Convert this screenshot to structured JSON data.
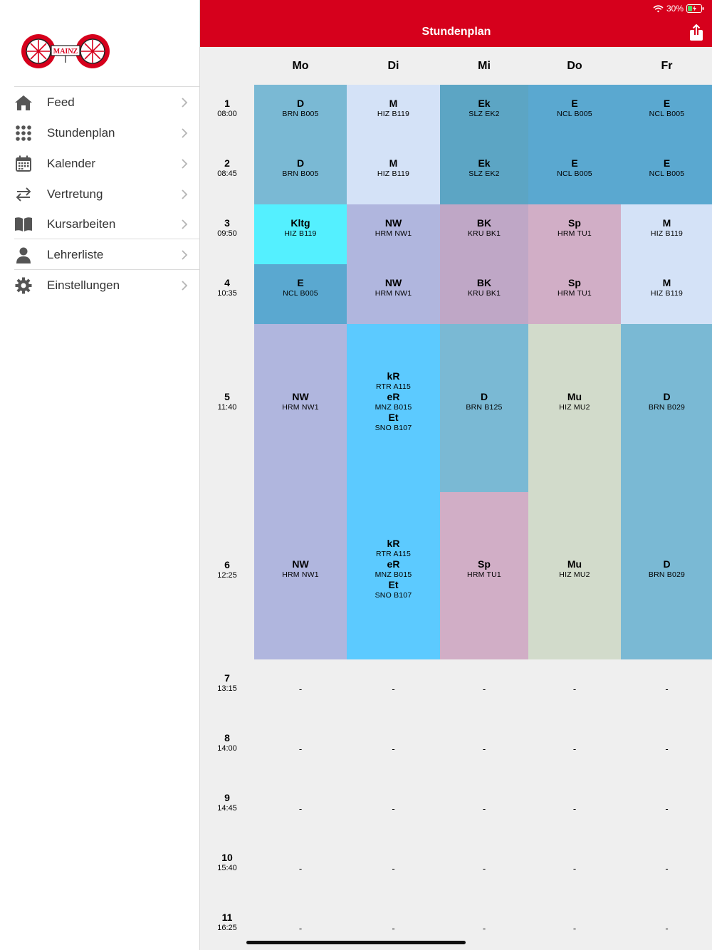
{
  "status": {
    "battery": "30%"
  },
  "header": {
    "title": "Stundenplan"
  },
  "colors": {
    "brand": "#d6001c"
  },
  "logo": {
    "text": "MAINZ"
  },
  "sidebar": {
    "items": [
      {
        "label": "Feed",
        "icon": "home-icon"
      },
      {
        "label": "Stundenplan",
        "icon": "grid-icon"
      },
      {
        "label": "Kalender",
        "icon": "calendar-icon"
      },
      {
        "label": "Vertretung",
        "icon": "swap-icon"
      },
      {
        "label": "Kursarbeiten",
        "icon": "book-icon"
      },
      {
        "label": "Lehrerliste",
        "icon": "person-icon"
      },
      {
        "label": "Einstellungen",
        "icon": "gear-icon"
      }
    ]
  },
  "days": [
    "Mo",
    "Di",
    "Mi",
    "Do",
    "Fr"
  ],
  "periods": [
    {
      "num": "1",
      "time": "08:00"
    },
    {
      "num": "2",
      "time": "08:45"
    },
    {
      "num": "3",
      "time": "09:50"
    },
    {
      "num": "4",
      "time": "10:35"
    },
    {
      "num": "5",
      "time": "11:40"
    },
    {
      "num": "6",
      "time": "12:25"
    },
    {
      "num": "7",
      "time": "13:15"
    },
    {
      "num": "8",
      "time": "14:00"
    },
    {
      "num": "9",
      "time": "14:45"
    },
    {
      "num": "10",
      "time": "15:40"
    },
    {
      "num": "11",
      "time": "16:25"
    }
  ],
  "lessons": [
    {
      "day": 0,
      "period": 0,
      "span": 2,
      "color": "#7ab9d4",
      "slots": [
        [
          {
            "s": "D",
            "r": "BRN B005"
          }
        ],
        [
          {
            "s": "D",
            "r": "BRN B005"
          }
        ]
      ]
    },
    {
      "day": 0,
      "period": 2,
      "span": 1,
      "color": "#54f0ff",
      "slots": [
        [
          {
            "s": "Kltg",
            "r": "HIZ B119"
          }
        ]
      ]
    },
    {
      "day": 0,
      "period": 3,
      "span": 1,
      "color": "#5aa8d0",
      "slots": [
        [
          {
            "s": "E",
            "r": "NCL B005"
          }
        ]
      ]
    },
    {
      "day": 0,
      "period": 4,
      "span": 2,
      "color": "#b0b6de",
      "slots": [
        [
          {
            "s": "NW",
            "r": "HRM NW1"
          }
        ],
        [
          {
            "s": "NW",
            "r": "HRM NW1"
          }
        ]
      ]
    },
    {
      "day": 1,
      "period": 0,
      "span": 2,
      "color": "#d4e2f7",
      "slots": [
        [
          {
            "s": "M",
            "r": "HIZ B119"
          }
        ],
        [
          {
            "s": "M",
            "r": "HIZ B119"
          }
        ]
      ]
    },
    {
      "day": 1,
      "period": 2,
      "span": 2,
      "color": "#b0b6de",
      "slots": [
        [
          {
            "s": "NW",
            "r": "HRM NW1"
          }
        ],
        [
          {
            "s": "NW",
            "r": "HRM NW1"
          }
        ]
      ]
    },
    {
      "day": 1,
      "period": 4,
      "span": 2,
      "color": "#5ccaff",
      "slots": [
        [
          {
            "s": "kR",
            "r": "RTR A115"
          },
          {
            "s": "eR",
            "r": "MNZ B015"
          },
          {
            "s": "Et",
            "r": "SNO B107"
          }
        ],
        [
          {
            "s": "kR",
            "r": "RTR A115"
          },
          {
            "s": "eR",
            "r": "MNZ B015"
          },
          {
            "s": "Et",
            "r": "SNO B107"
          }
        ]
      ]
    },
    {
      "day": 2,
      "period": 0,
      "span": 2,
      "color": "#5ca5c4",
      "slots": [
        [
          {
            "s": "Ek",
            "r": "SLZ EK2"
          }
        ],
        [
          {
            "s": "Ek",
            "r": "SLZ EK2"
          }
        ]
      ]
    },
    {
      "day": 2,
      "period": 2,
      "span": 2,
      "color": "#bfa7c6",
      "slots": [
        [
          {
            "s": "BK",
            "r": "KRU BK1"
          }
        ],
        [
          {
            "s": "BK",
            "r": "KRU BK1"
          }
        ]
      ]
    },
    {
      "day": 2,
      "period": 4,
      "span": 1,
      "color": "#7ab9d4",
      "slots": [
        [
          {
            "s": "D",
            "r": "BRN B125"
          }
        ]
      ]
    },
    {
      "day": 2,
      "period": 5,
      "span": 1,
      "color": "#d1aec6",
      "slots": [
        [
          {
            "s": "Sp",
            "r": "HRM TU1"
          }
        ]
      ]
    },
    {
      "day": 3,
      "period": 0,
      "span": 2,
      "color": "#5aa8d0",
      "slots": [
        [
          {
            "s": "E",
            "r": "NCL B005"
          }
        ],
        [
          {
            "s": "E",
            "r": "NCL B005"
          }
        ]
      ]
    },
    {
      "day": 3,
      "period": 2,
      "span": 2,
      "color": "#d1aec6",
      "slots": [
        [
          {
            "s": "Sp",
            "r": "HRM TU1"
          }
        ],
        [
          {
            "s": "Sp",
            "r": "HRM TU1"
          }
        ]
      ]
    },
    {
      "day": 3,
      "period": 4,
      "span": 2,
      "color": "#d2dbcb",
      "slots": [
        [
          {
            "s": "Mu",
            "r": "HIZ MU2"
          }
        ],
        [
          {
            "s": "Mu",
            "r": "HIZ MU2"
          }
        ]
      ]
    },
    {
      "day": 4,
      "period": 0,
      "span": 2,
      "color": "#5aa8d0",
      "slots": [
        [
          {
            "s": "E",
            "r": "NCL B005"
          }
        ],
        [
          {
            "s": "E",
            "r": "NCL B005"
          }
        ]
      ]
    },
    {
      "day": 4,
      "period": 2,
      "span": 2,
      "color": "#d4e2f7",
      "slots": [
        [
          {
            "s": "M",
            "r": "HIZ B119"
          }
        ],
        [
          {
            "s": "M",
            "r": "HIZ B119"
          }
        ]
      ]
    },
    {
      "day": 4,
      "period": 4,
      "span": 2,
      "color": "#7ab9d4",
      "slots": [
        [
          {
            "s": "D",
            "r": "BRN B029"
          }
        ],
        [
          {
            "s": "D",
            "r": "BRN B029"
          }
        ]
      ]
    }
  ],
  "free_marker": "-"
}
